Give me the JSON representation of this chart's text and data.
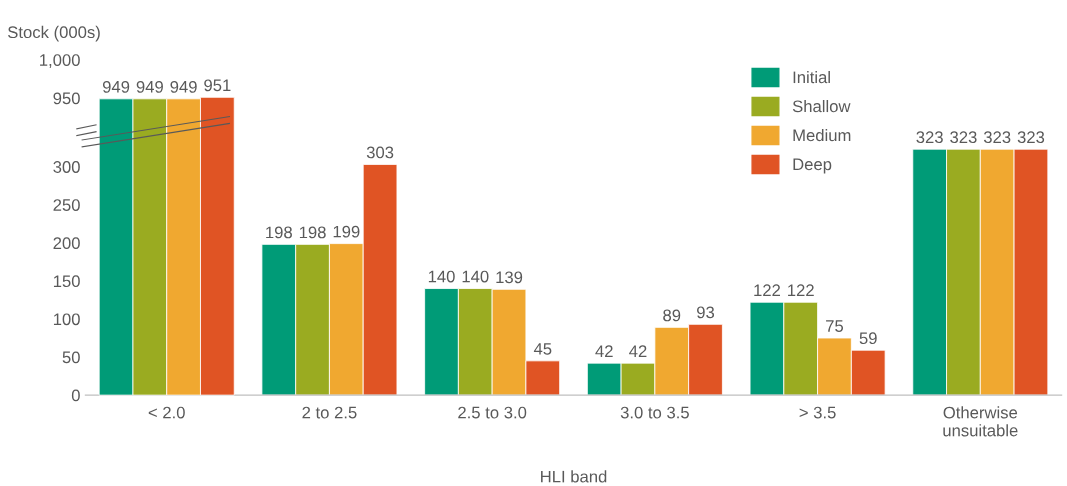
{
  "chart_data": [
    {
      "type": "bar",
      "ylabel": "Stock (000s)",
      "categories": [
        null,
        null,
        null,
        null,
        null,
        null
      ],
      "ylim": [
        920,
        1000
      ],
      "yticks": [
        950,
        {
          "value": 1000,
          "label": "1,000"
        }
      ],
      "tick_labels": "y",
      "data_labels": true,
      "grid": false,
      "series": [
        {
          "color": "#009b77",
          "values": [
            949,
            null,
            null,
            null,
            null,
            null
          ]
        },
        {
          "color": "#9aab21",
          "values": [
            949,
            null,
            null,
            null,
            null,
            null
          ]
        },
        {
          "color": "#f0a830",
          "values": [
            949,
            null,
            null,
            null,
            null,
            null
          ]
        },
        {
          "color": "#e05424",
          "values": [
            951,
            null,
            null,
            null,
            null,
            null
          ]
        }
      ]
    },
    {
      "type": "bar",
      "xlabel": "HLI band",
      "categories": [
        "< 2.0",
        "2 to 2.5",
        "2.5 to 3.0",
        "3.0 to 3.5",
        "> 3.5",
        "Otherwise\nunsuitable"
      ],
      "ylim": [
        0,
        330
      ],
      "yticks": [
        0,
        50,
        100,
        150,
        200,
        250,
        300
      ],
      "data_labels": true,
      "legend": "top right",
      "grid": false,
      "series": [
        {
          "name": "Initial",
          "color": "#009b77",
          "values": [
            null,
            198,
            140,
            42,
            122,
            323
          ]
        },
        {
          "name": "Shallow",
          "color": "#9aab21",
          "values": [
            null,
            198,
            140,
            42,
            122,
            323
          ]
        },
        {
          "name": "Medium",
          "color": "#f0a830",
          "values": [
            null,
            199,
            139,
            89,
            75,
            323
          ]
        },
        {
          "name": "Deep",
          "color": "#e05424",
          "values": [
            null,
            303,
            45,
            93,
            59,
            323
          ]
        }
      ]
    }
  ]
}
